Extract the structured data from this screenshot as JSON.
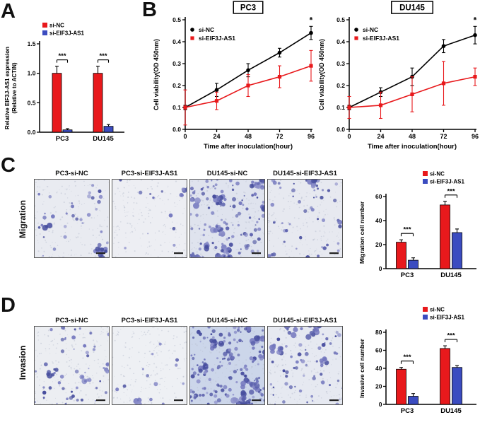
{
  "figure": {
    "panels": {
      "a": {
        "letter": "A"
      },
      "b": {
        "letter": "B"
      },
      "c": {
        "letter": "C",
        "row_label": "Migration",
        "images": [
          {
            "label": "PC3-si-NC",
            "density": 30,
            "clusters": 2,
            "bg": "#e9ebf1",
            "seed": 11
          },
          {
            "label": "PC3-si-EIF3J-AS1",
            "density": 11,
            "clusters": 1,
            "bg": "#edeef3",
            "seed": 22
          },
          {
            "label": "DU145-si-NC",
            "density": 95,
            "clusters": 9,
            "bg": "#dfe3ee",
            "seed": 33
          },
          {
            "label": "DU145-si-EIF3J-AS1",
            "density": 40,
            "clusters": 3,
            "bg": "#e7e9f0",
            "seed": 44
          }
        ]
      },
      "d": {
        "letter": "D",
        "row_label": "Invasion",
        "images": [
          {
            "label": "PC3-si-NC",
            "density": 48,
            "clusters": 4,
            "bg": "#eceef2",
            "seed": 55
          },
          {
            "label": "PC3-si-EIF3J-AS1",
            "density": 13,
            "clusters": 1,
            "bg": "#eef0f4",
            "seed": 66
          },
          {
            "label": "DU145-si-NC",
            "density": 130,
            "clusters": 12,
            "bg": "#ccd6ea",
            "seed": 77
          },
          {
            "label": "DU145-si-EIF3J-AS1",
            "density": 55,
            "clusters": 5,
            "bg": "#e6e9f1",
            "seed": 88
          }
        ]
      }
    },
    "stain_palette": [
      "#5c61ad",
      "#7276bd",
      "#474d9e",
      "#8b8ec9"
    ],
    "colors": {
      "si_nc": "#e8191c",
      "si_eif3j_as1": "#3b4cc0",
      "black": "#000000"
    }
  },
  "chart_data": [
    {
      "id": "expression",
      "type": "bar",
      "ylabel_lines": [
        "Relative EIF3J-AS1 expression",
        "(Relative to ACTIN)"
      ],
      "categories": [
        "PC3",
        "DU145"
      ],
      "series": [
        {
          "name": "si-NC",
          "color": "#e8191c",
          "values": [
            1.0,
            1.0
          ],
          "errors": [
            0.12,
            0.12
          ]
        },
        {
          "name": "si-EIF3J-AS1",
          "color": "#3b4cc0",
          "values": [
            0.04,
            0.1
          ],
          "errors": [
            0.02,
            0.03
          ]
        }
      ],
      "ylim": [
        0,
        1.5
      ],
      "yticks": [
        0,
        0.5,
        1.0,
        1.5
      ],
      "ytick_decimals": 1,
      "significance": [
        "***",
        "***"
      ]
    },
    {
      "id": "pc3_viability",
      "type": "line",
      "title": "PC3",
      "xlabel": "Time after inoculation(hour)",
      "ylabel": "Cell viability(OD 450nm)",
      "x": [
        0,
        24,
        48,
        72,
        96
      ],
      "series": [
        {
          "name": "si-NC",
          "color": "#000000",
          "marker": "circle",
          "values": [
            0.1,
            0.18,
            0.27,
            0.35,
            0.44
          ],
          "errors": [
            0.01,
            0.03,
            0.03,
            0.02,
            0.03
          ]
        },
        {
          "name": "si-EIF3J-AS1",
          "color": "#e8191c",
          "marker": "square",
          "values": [
            0.1,
            0.13,
            0.2,
            0.24,
            0.29
          ],
          "errors": [
            0.08,
            0.04,
            0.05,
            0.05,
            0.07
          ]
        }
      ],
      "ylim": [
        0,
        0.5
      ],
      "yticks": [
        0,
        0.1,
        0.2,
        0.3,
        0.4,
        0.5
      ],
      "ytick_decimals": 1,
      "annotation": "*"
    },
    {
      "id": "du145_viability",
      "type": "line",
      "title": "DU145",
      "xlabel": "Time after inoculation(hour)",
      "ylabel": "Cell viability(OD 450nm)",
      "x": [
        0,
        24,
        48,
        72,
        96
      ],
      "series": [
        {
          "name": "si-NC",
          "color": "#000000",
          "marker": "circle",
          "values": [
            0.1,
            0.17,
            0.24,
            0.38,
            0.43
          ],
          "errors": [
            0.01,
            0.02,
            0.04,
            0.03,
            0.04
          ]
        },
        {
          "name": "si-EIF3J-AS1",
          "color": "#e8191c",
          "marker": "square",
          "values": [
            0.1,
            0.11,
            0.16,
            0.21,
            0.24
          ],
          "errors": [
            0.05,
            0.06,
            0.08,
            0.1,
            0.04
          ]
        }
      ],
      "ylim": [
        0,
        0.5
      ],
      "yticks": [
        0,
        0.1,
        0.2,
        0.3,
        0.4,
        0.5
      ],
      "ytick_decimals": 1,
      "annotation": "*"
    },
    {
      "id": "migration",
      "type": "bar",
      "ylabel_lines": [
        "Migration cell number"
      ],
      "categories": [
        "PC3",
        "DU145"
      ],
      "series": [
        {
          "name": "si-NC",
          "color": "#e8191c",
          "values": [
            22,
            53
          ],
          "errors": [
            2,
            3
          ]
        },
        {
          "name": "si-EIF3J-AS1",
          "color": "#3b4cc0",
          "values": [
            7,
            30
          ],
          "errors": [
            2,
            3
          ]
        }
      ],
      "ylim": [
        0,
        60
      ],
      "yticks": [
        0,
        20,
        40,
        60
      ],
      "ytick_decimals": 0,
      "significance": [
        "***",
        "***"
      ]
    },
    {
      "id": "invasion",
      "type": "bar",
      "ylabel_lines": [
        "Invasive cell number"
      ],
      "categories": [
        "PC3",
        "DU145"
      ],
      "series": [
        {
          "name": "si-NC",
          "color": "#e8191c",
          "values": [
            39,
            62
          ],
          "errors": [
            2,
            3
          ]
        },
        {
          "name": "si-EIF3J-AS1",
          "color": "#3b4cc0",
          "values": [
            9,
            41
          ],
          "errors": [
            3,
            2
          ]
        }
      ],
      "ylim": [
        0,
        80
      ],
      "yticks": [
        0,
        20,
        40,
        60,
        80
      ],
      "ytick_decimals": 0,
      "significance": [
        "***",
        "***"
      ]
    }
  ]
}
